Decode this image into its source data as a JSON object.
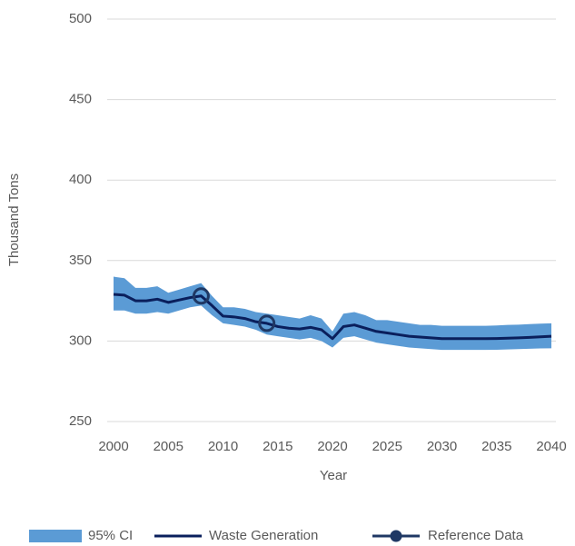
{
  "chart_data": {
    "type": "line",
    "x_label": "Year",
    "y_label": "Thousand Tons",
    "x": [
      2000,
      2001,
      2002,
      2003,
      2004,
      2005,
      2006,
      2007,
      2008,
      2009,
      2010,
      2011,
      2012,
      2013,
      2014,
      2015,
      2016,
      2017,
      2018,
      2019,
      2020,
      2021,
      2022,
      2023,
      2024,
      2025,
      2026,
      2027,
      2028,
      2029,
      2030,
      2031,
      2032,
      2033,
      2034,
      2035,
      2036,
      2037,
      2038,
      2039,
      2040
    ],
    "series": [
      {
        "name": "95% CI",
        "type": "band",
        "color": "#5b9bd5",
        "upper": [
          340,
          339,
          333,
          333,
          334,
          330,
          332,
          334,
          336,
          328,
          321,
          321,
          320,
          318,
          317,
          316,
          315,
          314,
          316,
          314,
          306,
          317,
          318,
          316,
          313,
          313,
          312,
          311,
          310,
          310,
          309.5,
          309.5,
          309.5,
          309.5,
          309.5,
          309.7,
          310,
          310.2,
          310.5,
          310.8,
          311
        ],
        "lower": [
          319,
          319,
          317,
          317,
          318,
          317,
          319,
          321,
          322,
          316,
          311,
          310,
          309,
          307,
          304,
          303,
          302,
          301,
          302,
          300,
          296,
          302,
          303,
          301,
          299,
          298,
          297,
          296,
          295.5,
          295,
          294.5,
          294.5,
          294.5,
          294.5,
          294.5,
          294.6,
          294.8,
          295,
          295.2,
          295.4,
          295.5
        ]
      },
      {
        "name": "Waste Generation",
        "type": "line",
        "color": "#0a1f5c",
        "values": [
          329,
          328.5,
          325,
          325,
          326,
          324,
          325.5,
          327,
          328,
          322,
          315.5,
          315,
          314,
          312,
          311,
          309,
          308,
          307.5,
          308.5,
          307,
          301.5,
          309,
          310,
          308,
          306,
          305,
          304,
          303,
          302.5,
          302,
          301.5,
          301.5,
          301.5,
          301.5,
          301.5,
          301.6,
          301.8,
          302,
          302.3,
          302.6,
          303
        ]
      },
      {
        "name": "Reference Data",
        "type": "marker",
        "color": "#1f3864",
        "x": [
          2008,
          2014
        ],
        "values": [
          328,
          311
        ]
      }
    ],
    "xlim": [
      2000,
      2040
    ],
    "xticks": [
      2000,
      2005,
      2010,
      2015,
      2020,
      2025,
      2030,
      2035,
      2040
    ],
    "ylim": [
      250,
      500
    ],
    "yticks": [
      250,
      300,
      350,
      400,
      450,
      500
    ],
    "grid": true,
    "legend": "bottom"
  }
}
